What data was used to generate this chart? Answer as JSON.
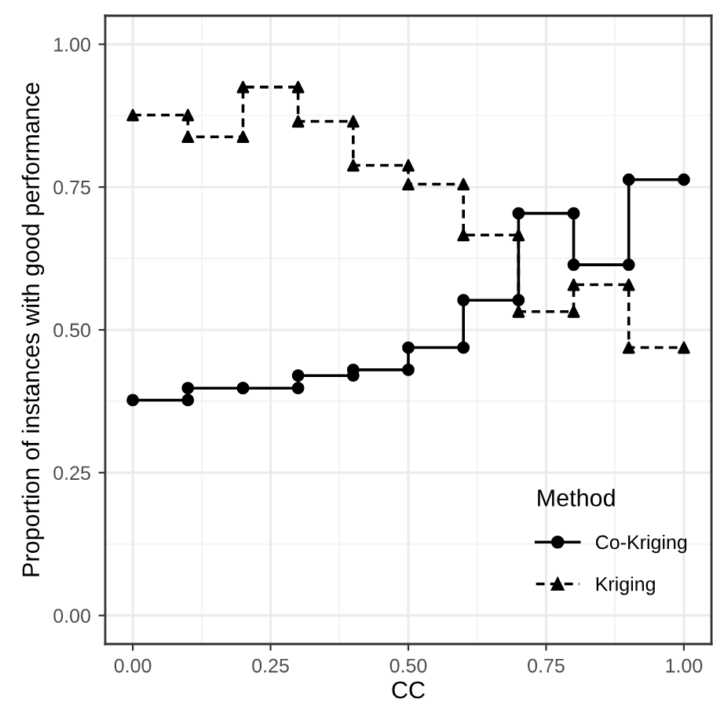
{
  "chart_data": {
    "type": "line",
    "xlabel": "CC",
    "ylabel": "Proportion of instances with good performance",
    "legend_title": "Method",
    "x": [
      0,
      0.1,
      0.1,
      0.2,
      0.2,
      0.3,
      0.3,
      0.4,
      0.4,
      0.5,
      0.5,
      0.6,
      0.6,
      0.7,
      0.7,
      0.8,
      0.8,
      0.9,
      0.9,
      1.0
    ],
    "series": [
      {
        "name": "Co-Kriging",
        "color": "#000000",
        "marker": "circle",
        "line_style": "solid",
        "values": [
          0.377,
          0.377,
          0.398,
          0.398,
          0.398,
          0.398,
          0.42,
          0.42,
          0.43,
          0.43,
          0.469,
          0.469,
          0.552,
          0.552,
          0.704,
          0.704,
          0.614,
          0.614,
          0.763,
          0.763
        ]
      },
      {
        "name": "Kriging",
        "color": "#000000",
        "marker": "triangle",
        "line_style": "dashed",
        "values": [
          0.876,
          0.876,
          0.838,
          0.838,
          0.925,
          0.925,
          0.865,
          0.865,
          0.788,
          0.788,
          0.755,
          0.755,
          0.666,
          0.666,
          0.532,
          0.532,
          0.579,
          0.579,
          0.469,
          0.469
        ]
      }
    ],
    "xlim": [
      -0.05,
      1.05
    ],
    "ylim": [
      -0.05,
      1.05
    ],
    "xticks": [
      {
        "value": 0,
        "label": "0.00"
      },
      {
        "value": 0.25,
        "label": "0.25"
      },
      {
        "value": 0.5,
        "label": "0.50"
      },
      {
        "value": 0.75,
        "label": "0.75"
      },
      {
        "value": 1,
        "label": "1.00"
      }
    ],
    "yticks": [
      {
        "value": 0,
        "label": "0.00"
      },
      {
        "value": 0.25,
        "label": "0.25"
      },
      {
        "value": 0.5,
        "label": "0.50"
      },
      {
        "value": 0.75,
        "label": "0.75"
      },
      {
        "value": 1,
        "label": "1.00"
      }
    ],
    "grid": true,
    "legend": "bottom right"
  }
}
